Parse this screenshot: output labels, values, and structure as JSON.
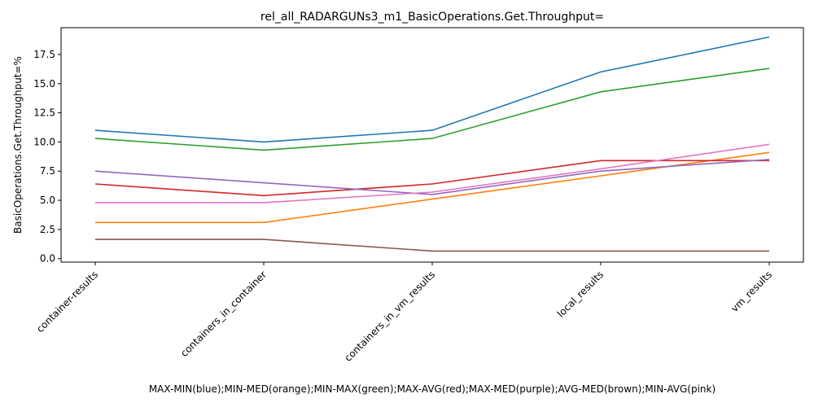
{
  "chart_data": {
    "type": "line",
    "title": "rel_all_RADARGUNs3_m1_BasicOperations.Get.Throughput=",
    "xlabel": "MAX-MIN(blue);MIN-MED(orange);MIN-MAX(green);MAX-AVG(red);MAX-MED(purple);AVG-MED(brown);MIN-AVG(pink)",
    "ylabel": "BasicOperations.Get.Throughput=%",
    "categories": [
      "container-results",
      "containers_in_container",
      "containers_in_vm_results",
      "local_results",
      "vm_results"
    ],
    "ylim": [
      -0.3,
      19.8
    ],
    "yticks": [
      "0.0",
      "2.5",
      "5.0",
      "7.5",
      "10.0",
      "12.5",
      "15.0",
      "17.5"
    ],
    "series": [
      {
        "color": "#1f77b4",
        "values": [
          11.0,
          10.0,
          11.0,
          16.0,
          19.0
        ]
      },
      {
        "color": "#ff7f0e",
        "values": [
          3.1,
          3.1,
          5.1,
          7.1,
          9.1
        ]
      },
      {
        "color": "#2ca02c",
        "values": [
          10.3,
          9.3,
          10.3,
          14.3,
          16.3
        ]
      },
      {
        "color": "#d62728",
        "values": [
          6.4,
          5.4,
          6.4,
          8.4,
          8.4
        ]
      },
      {
        "color": "#9467bd",
        "values": [
          7.5,
          6.5,
          5.5,
          7.5,
          8.5
        ]
      },
      {
        "color": "#8c564b",
        "values": [
          1.65,
          1.65,
          0.65,
          0.65,
          0.65
        ]
      },
      {
        "color": "#e377c2",
        "values": [
          4.8,
          4.8,
          5.7,
          7.7,
          9.8
        ]
      }
    ]
  }
}
